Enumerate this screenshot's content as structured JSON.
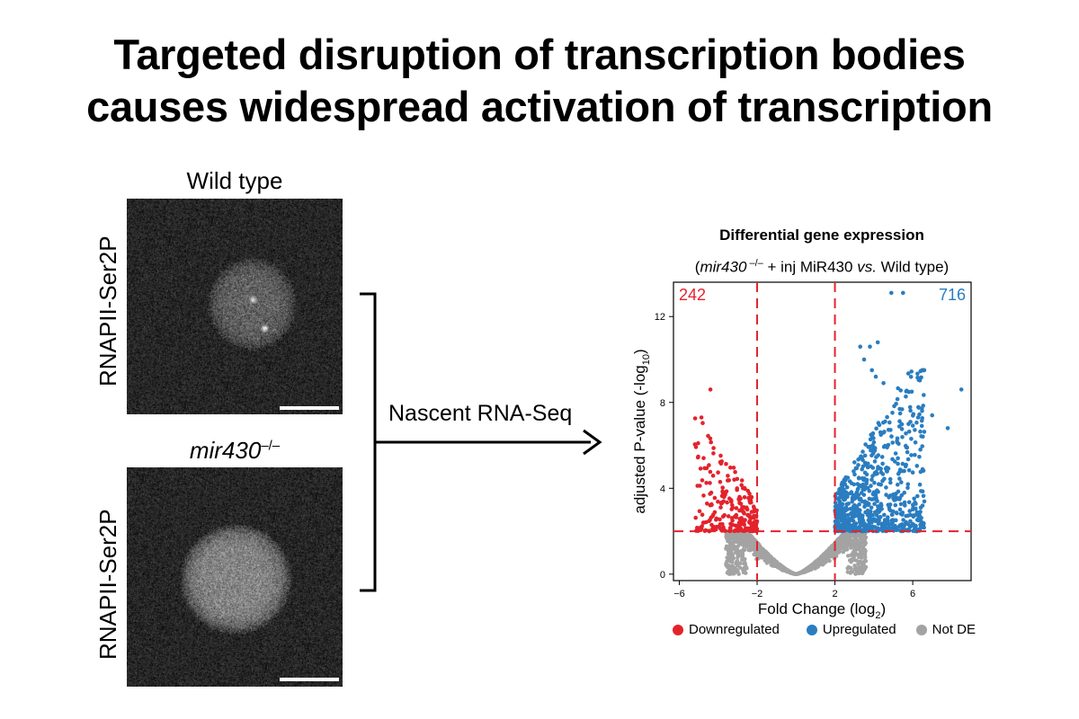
{
  "title_line1": "Targeted disruption of transcription bodies",
  "title_line2": "causes widespread activation of transcription",
  "panels": {
    "top_label": "Wild type",
    "bottom_label_italic": "mir430",
    "bottom_label_sup": "–/–",
    "side_label": "RNAPII-Ser2P"
  },
  "flow_label": "Nascent RNA-Seq",
  "chart_data": {
    "type": "scatter",
    "title": "Differential gene expression",
    "subtitle_italic": "mir430",
    "subtitle_sup": " –/–",
    "subtitle_rest": " + inj MiR430 ",
    "subtitle_vs": "vs.",
    "subtitle_end": " Wild type)",
    "xlabel": "Fold Change (log",
    "xlabel_sub": "2",
    "ylabel": "adjusted P-value (-log",
    "ylabel_sub": "10",
    "xlim": [
      -6.3,
      9.0
    ],
    "ylim": [
      -0.3,
      13.6
    ],
    "xticks": [
      -6,
      -2,
      2,
      6
    ],
    "xtick_labels": [
      "−6",
      "−2",
      "2",
      "6"
    ],
    "yticks": [
      0,
      4,
      8,
      12
    ],
    "ytick_labels": [
      "0",
      "4",
      "8",
      "12"
    ],
    "thresholds": {
      "x": [
        -2,
        2
      ],
      "y": 2
    },
    "count_down": "242",
    "count_up": "716",
    "series": [
      {
        "name": "Downregulated",
        "color": "#e3232c",
        "count": 242
      },
      {
        "name": "Upregulated",
        "color": "#2a7dc0",
        "count": 716
      },
      {
        "name": "Not DE",
        "color": "#a3a3a3"
      }
    ],
    "outliers": [
      [
        4.9,
        13.1
      ],
      [
        5.5,
        13.1
      ],
      [
        3.3,
        10.6
      ],
      [
        3.8,
        10.6
      ],
      [
        4.2,
        10.8
      ],
      [
        3.5,
        10.0
      ],
      [
        3.9,
        9.5
      ],
      [
        4.1,
        9.2
      ],
      [
        8.5,
        8.6
      ],
      [
        -4.4,
        8.6
      ],
      [
        7.8,
        6.8
      ],
      [
        7.0,
        7.4
      ],
      [
        4.5,
        8.9
      ]
    ],
    "grid": false
  },
  "colors": {
    "accent_red": "#e3232c",
    "accent_blue": "#2a7dc0",
    "not_de": "#a3a3a3"
  }
}
